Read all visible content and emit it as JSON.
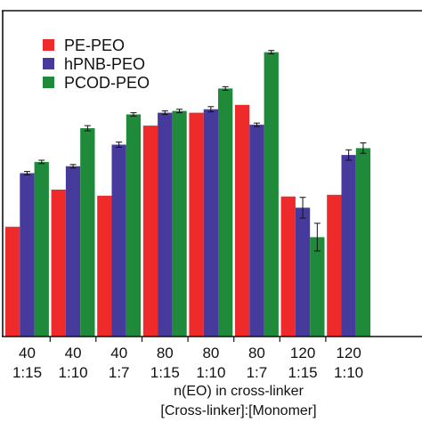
{
  "chart_data": {
    "type": "bar",
    "categories": [
      {
        "top": "40",
        "bottom": "1:15"
      },
      {
        "top": "40",
        "bottom": "1:10"
      },
      {
        "top": "40",
        "bottom": "1:7"
      },
      {
        "top": "80",
        "bottom": "1:15"
      },
      {
        "top": "80",
        "bottom": "1:10"
      },
      {
        "top": "80",
        "bottom": "1:7"
      },
      {
        "top": "120",
        "bottom": "1:15"
      },
      {
        "top": "120",
        "bottom": "1:10"
      }
    ],
    "xlabel_line1": "n(EO) in cross-linker",
    "xlabel_line2": "[Cross-linker]:[Monomer]",
    "ylim": [
      0,
      377
    ],
    "series": [
      {
        "name": "PE-PEO",
        "color": "#ee2a2a",
        "values": [
          127,
          170,
          163,
          244,
          259,
          268,
          162,
          164
        ],
        "errors": [
          0,
          0,
          0,
          0,
          0,
          0,
          0,
          0
        ]
      },
      {
        "name": "hPNB-PEO",
        "color": "#463a9c",
        "values": [
          189,
          197,
          222,
          259,
          263,
          245,
          149,
          210
        ],
        "errors": [
          2,
          2,
          3,
          2,
          3,
          2,
          12,
          6
        ]
      },
      {
        "name": "PCOD-PEO",
        "color": "#1e8a3a",
        "values": [
          202,
          241,
          257,
          261,
          287,
          329,
          115,
          218
        ],
        "errors": [
          2,
          3,
          2,
          2,
          2,
          2,
          16,
          6
        ]
      }
    ]
  }
}
